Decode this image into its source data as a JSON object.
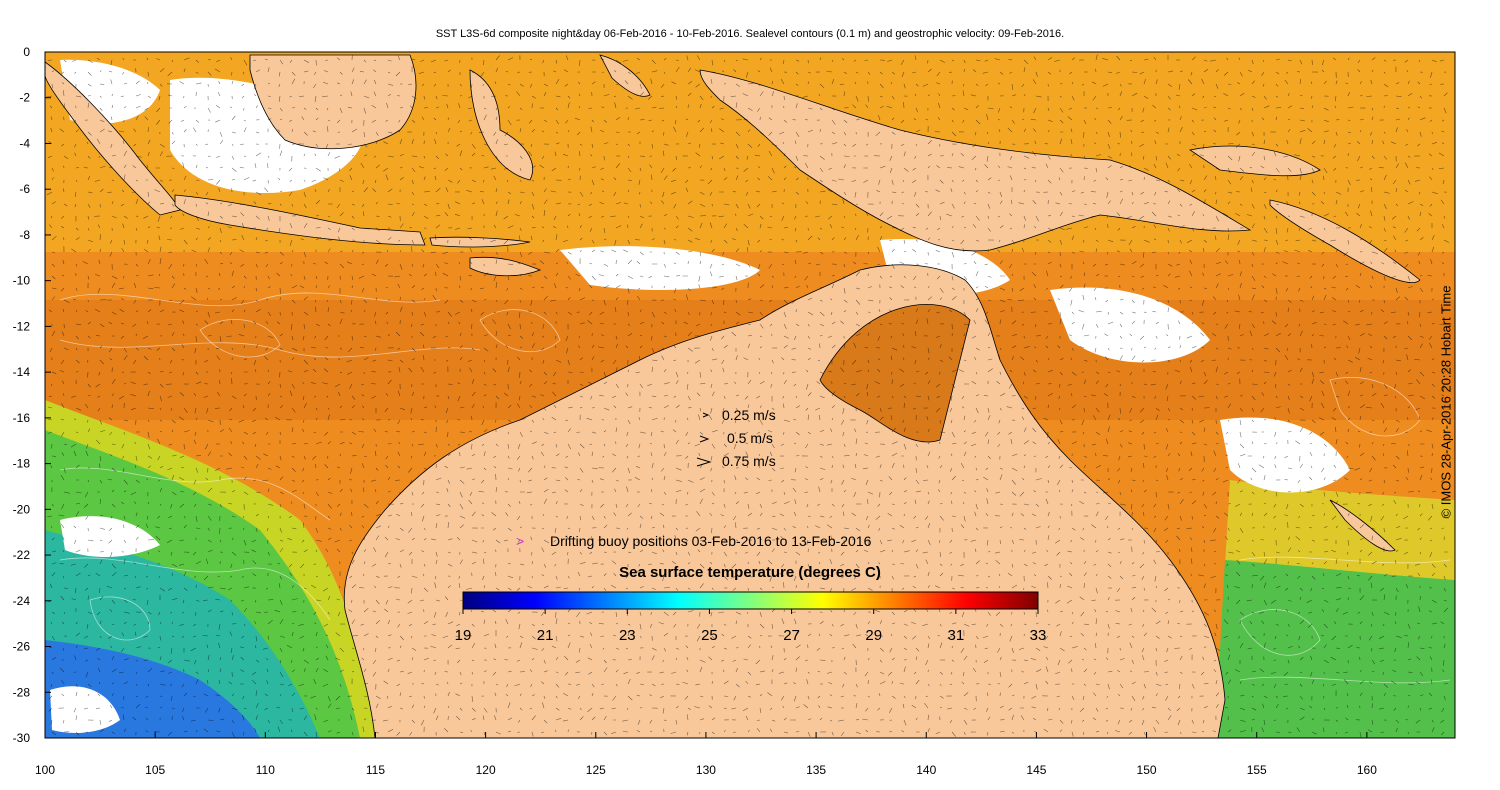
{
  "title": "SST L3S-6d composite night&day 06-Feb-2016 - 10-Feb-2016. Sealevel contours (0.1 m) and geostrophic velocity: 09-Feb-2016.",
  "credit": "© IMOS 28-Apr-2016 20:28 Hobart Time",
  "axes": {
    "x_ticks": [
      "100",
      "105",
      "110",
      "115",
      "120",
      "125",
      "130",
      "135",
      "140",
      "145",
      "150",
      "155",
      "160"
    ],
    "y_ticks": [
      "0",
      "-2",
      "-4",
      "-6",
      "-8",
      "-10",
      "-12",
      "-14",
      "-16",
      "-18",
      "-20",
      "-22",
      "-24",
      "-26",
      "-28",
      "-30"
    ],
    "lon_range": [
      100,
      164
    ],
    "lat_range": [
      -30,
      0
    ]
  },
  "velocity_legend": [
    {
      "label": "0.25 m/s",
      "speed": 0.25
    },
    {
      "label": "0.5 m/s",
      "speed": 0.5
    },
    {
      "label": "0.75 m/s",
      "speed": 0.75
    }
  ],
  "buoy_legend": {
    "label": "Drifting buoy positions 03-Feb-2016 to 13-Feb-2016",
    "marker": ">",
    "marker_color": "#cc33cc"
  },
  "colorbar": {
    "label": "Sea surface temperature (degrees C)",
    "ticks": [
      "19",
      "21",
      "23",
      "25",
      "27",
      "29",
      "31",
      "33"
    ],
    "range": [
      19,
      33
    ],
    "colormap": [
      "#00007f",
      "#0000ff",
      "#007fff",
      "#00ffff",
      "#7fff7f",
      "#ffff00",
      "#ff7f00",
      "#ff0000",
      "#7f0000"
    ]
  },
  "colors": {
    "land": "#f8c89a",
    "cloud": "#ffffff",
    "warm": "#ec8a1e",
    "hot": "#d86f16",
    "yellow": "#f3c51c",
    "green": "#4fc84a",
    "cool": "#2ab0b8",
    "cold": "#1f63d8"
  }
}
